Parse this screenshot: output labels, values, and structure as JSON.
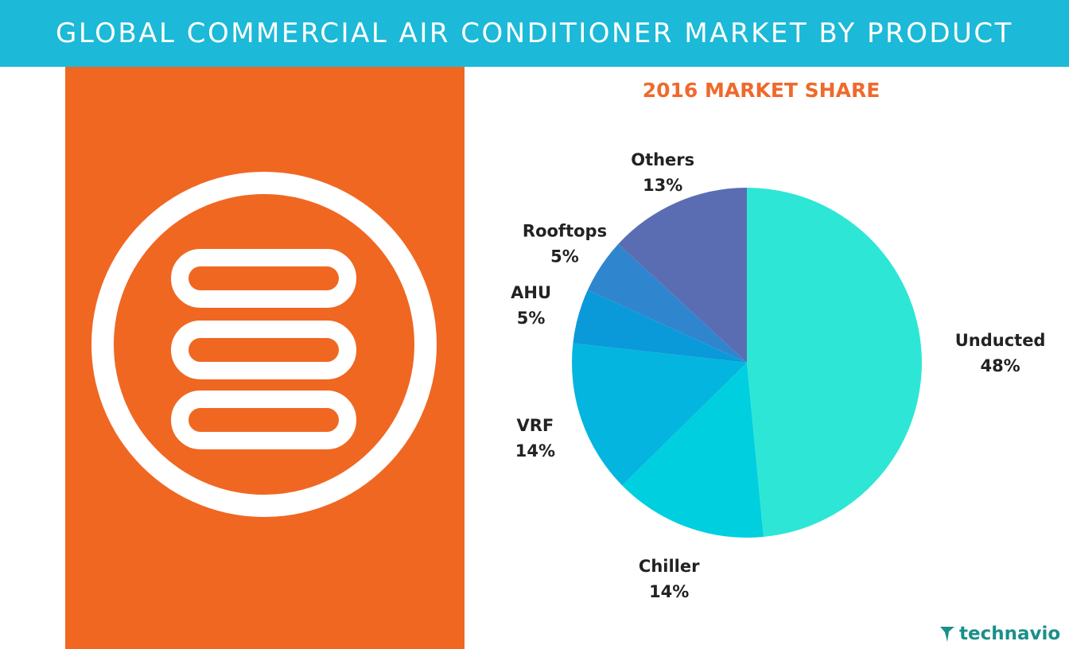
{
  "header": {
    "title": "GLOBAL COMMERCIAL AIR CONDITIONER MARKET BY PRODUCT",
    "background": "#1cb9d8"
  },
  "icon_panel": {
    "background": "#f06722",
    "icon": "air-conditioner-vent-icon"
  },
  "brand": {
    "name": "technavio",
    "icon": "technavio-logo-icon",
    "color": "#1a8f8a"
  },
  "chart_data": {
    "type": "pie",
    "title": "2016 MARKET SHARE",
    "start": "12 o'clock",
    "direction": "clockwise",
    "slices": [
      {
        "name": "Unducted",
        "value": 48,
        "label": "48%",
        "color": "#2ee6d6"
      },
      {
        "name": "Chiller",
        "value": 14,
        "label": "14%",
        "color": "#00cfe0"
      },
      {
        "name": "VRF",
        "value": 14,
        "label": "14%",
        "color": "#03b5df"
      },
      {
        "name": "AHU",
        "value": 5,
        "label": "5%",
        "color": "#0a9ad9"
      },
      {
        "name": "Rooftops",
        "value": 5,
        "label": "5%",
        "color": "#2f86cf"
      },
      {
        "name": "Others",
        "value": 13,
        "label": "13%",
        "color": "#5a6db3"
      }
    ]
  }
}
